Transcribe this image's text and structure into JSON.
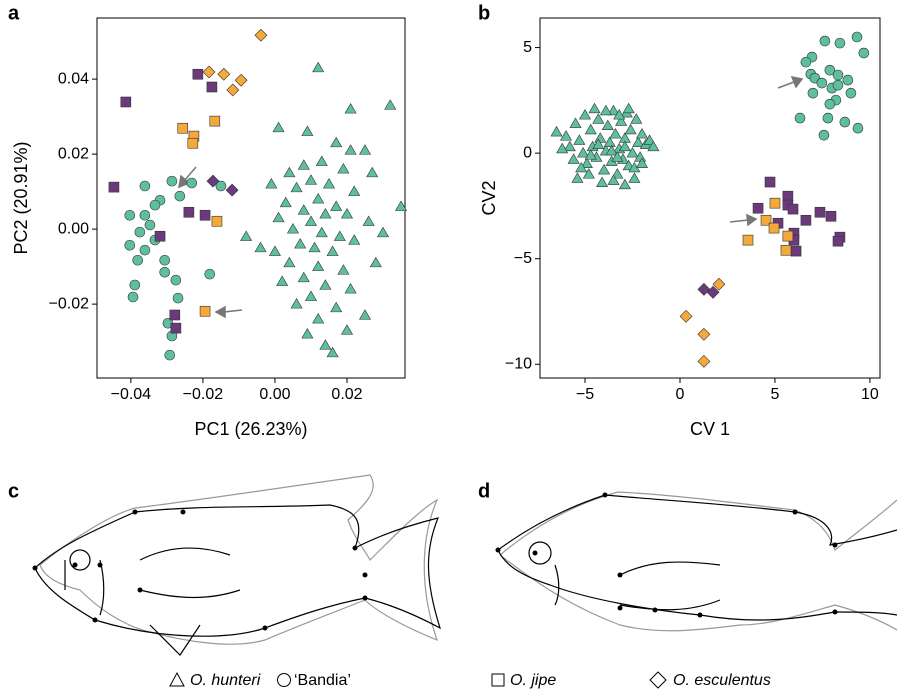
{
  "chart_data": [
    {
      "type": "scatter",
      "panel": "a",
      "xlabel": "PC1 (26.23%)",
      "ylabel": "PC2 (20.91%)",
      "xlim": [
        -0.0494,
        0.0361
      ],
      "ylim": [
        -0.0397,
        0.0563
      ],
      "xticks": [
        {
          "value": -0.04,
          "label": "−0.04"
        },
        {
          "value": -0.02,
          "label": "−0.02"
        },
        {
          "value": 0,
          "label": "0.00"
        },
        0.02
      ],
      "yticks": [
        {
          "value": -0.02,
          "label": "−0.02"
        },
        {
          "value": 0,
          "label": "0.00"
        },
        0.02,
        0.04
      ],
      "series": [
        {
          "name": "O. hunteri",
          "italic": true,
          "marker": "triangle",
          "color": "#5dbf9f",
          "x": [
            0.012,
            0.032,
            0.021,
            0.017,
            0.001,
            0.009,
            0.021,
            0.025,
            0.027,
            0.013,
            0.008,
            0.004,
            0.019,
            0.01,
            0.015,
            -0.001,
            0.006,
            0.022,
            0.035,
            0.012,
            0.003,
            0.017,
            0.008,
            0.014,
            0.02,
            0.001,
            0.01,
            0.026,
            -0.008,
            0.005,
            0.013,
            0.018,
            0.022,
            0.007,
            0.011,
            0.0,
            0.016,
            0.028,
            0.004,
            0.012,
            0.019,
            0.008,
            0.002,
            0.014,
            0.021,
            0.01,
            0.006,
            0.017,
            0.025,
            0.012,
            0.02,
            0.009,
            0.014,
            0.016,
            -0.004,
            0.03
          ],
          "y": [
            0.043,
            0.033,
            0.032,
            0.023,
            0.027,
            0.026,
            0.021,
            0.021,
            0.015,
            0.018,
            0.017,
            0.015,
            0.016,
            0.013,
            0.012,
            0.012,
            0.011,
            0.01,
            0.006,
            0.008,
            0.007,
            0.006,
            0.005,
            0.004,
            0.004,
            0.003,
            0.002,
            0.002,
            -0.002,
            0.0,
            -0.001,
            -0.002,
            -0.003,
            -0.004,
            -0.005,
            -0.006,
            -0.006,
            -0.009,
            -0.009,
            -0.01,
            -0.011,
            -0.013,
            -0.014,
            -0.015,
            -0.016,
            -0.018,
            -0.02,
            -0.021,
            -0.023,
            -0.024,
            -0.027,
            -0.028,
            -0.031,
            -0.033,
            -0.005,
            -0.001
          ]
        },
        {
          "name": "‘Bandia’",
          "italic": false,
          "marker": "circle",
          "color": "#5dbf9f",
          "x": [
            -0.0286,
            -0.0264,
            -0.0361,
            -0.0319,
            -0.0333,
            -0.0361,
            -0.0403,
            -0.0347,
            -0.0375,
            -0.0333,
            -0.0403,
            -0.0361,
            -0.0306,
            -0.0381,
            -0.0306,
            -0.0275,
            -0.0389,
            -0.0394,
            -0.0269,
            -0.0297,
            -0.0286,
            -0.0292,
            -0.0231,
            -0.0181,
            -0.015
          ],
          "y": [
            0.0128,
            0.0088,
            0.0115,
            0.0077,
            0.0064,
            0.0037,
            0.0037,
            0.0011,
            -0.0008,
            -0.0029,
            -0.0043,
            -0.0056,
            -0.0083,
            -0.0083,
            -0.0115,
            -0.0136,
            -0.0149,
            -0.0181,
            -0.0184,
            -0.0251,
            -0.0285,
            -0.0336,
            0.0123,
            -0.012,
            0.0115
          ]
        },
        {
          "name": "O. jipe",
          "italic": true,
          "marker": "square",
          "color": "#6b3a7d",
          "x": [
            -0.0414,
            -0.0214,
            -0.0175,
            -0.0447,
            -0.0239,
            -0.0194,
            -0.0319,
            -0.0278,
            -0.0275
          ],
          "y": [
            0.0339,
            0.0413,
            0.0379,
            0.0112,
            0.0045,
            0.0037,
            -0.0019,
            -0.0229,
            -0.0264
          ]
        },
        {
          "name": "O. esculentus",
          "italic": true,
          "marker": "diamond",
          "color": "#6b3a7d",
          "x": [
            -0.0172,
            -0.0119
          ],
          "y": [
            0.0128,
            0.0104
          ]
        },
        {
          "marker": "square",
          "color": "#f5a93a",
          "x": [
            -0.0256,
            -0.0225,
            -0.0228,
            -0.0167,
            -0.0161,
            -0.0194
          ],
          "y": [
            0.0269,
            0.0248,
            0.0229,
            0.0288,
            0.0021,
            -0.0219
          ]
        },
        {
          "marker": "diamond",
          "color": "#f5a93a",
          "x": [
            -0.0183,
            -0.0142,
            -0.0094,
            -0.0117,
            -0.0039
          ],
          "y": [
            0.0419,
            0.0413,
            0.0397,
            0.0371,
            0.0517
          ]
        }
      ]
    },
    {
      "type": "scatter",
      "panel": "b",
      "xlabel": "CV 1",
      "ylabel": "CV2",
      "xlim": [
        -7.37,
        10.53
      ],
      "ylim": [
        -10.65,
        6.4
      ],
      "xticks": [
        {
          "value": -5,
          "label": "−5"
        },
        0,
        5,
        10
      ],
      "yticks": [
        {
          "value": -10,
          "label": "−10"
        },
        {
          "value": -5,
          "label": "−5"
        },
        0,
        5
      ],
      "series": [
        {
          "marker": "triangle",
          "color": "#5dbf9f",
          "x": [
            -6.5,
            -6,
            -5.8,
            -5.5,
            -5.3,
            -5.1,
            -5,
            -4.9,
            -4.7,
            -4.6,
            -4.4,
            -4.3,
            -4.2,
            -4.0,
            -3.9,
            -3.8,
            -3.7,
            -3.6,
            -3.5,
            -3.4,
            -3.3,
            -3.2,
            -3.1,
            -3.0,
            -2.9,
            -2.8,
            -2.7,
            -2.6,
            -2.5,
            -2.4,
            -2.3,
            -2.2,
            -2.1,
            -2.0,
            -1.8,
            -1.6,
            -1.4,
            -5.4,
            -4.8,
            -4.1,
            -3.5,
            -2.9,
            -5.6,
            -4.5,
            -3.9,
            -3.2,
            -2.7,
            -4.3,
            -3.6,
            -2.9,
            -3.3,
            -4.7,
            -5.2,
            -2.4,
            -6.2,
            -2.0
          ],
          "y": [
            1.0,
            0.8,
            0.3,
            1.4,
            0.6,
            0.0,
            1.8,
            -0.5,
            1.1,
            0.3,
            -0.2,
            1.6,
            0.7,
            -0.8,
            0.1,
            1.3,
            0.5,
            -0.4,
            2.0,
            0.9,
            -1.0,
            0.2,
            1.5,
            -0.3,
            0.7,
            1.9,
            -0.6,
            1.1,
            0.0,
            -1.2,
            1.6,
            0.5,
            -0.2,
            0.9,
            0.4,
            0.6,
            0.3,
            -1.2,
            -1.0,
            -1.4,
            -1.3,
            -1.5,
            -0.3,
            2.1,
            2.0,
            1.8,
            2.1,
            0.4,
            0.1,
            0.3,
            -0.2,
            -0.1,
            -0.7,
            -0.7,
            0.2,
            -0.5
          ]
        },
        {
          "marker": "circle",
          "color": "#5dbf9f",
          "x": [
            6.95,
            7.63,
            8.42,
            9.32,
            9.68,
            6.63,
            6.89,
            7.1,
            7.89,
            8.32,
            8.84,
            7.47,
            8.0,
            7.0,
            9.0,
            8.21,
            7.89,
            6.32,
            8.68,
            7.79,
            7.58,
            9.37,
            8.32
          ],
          "y": [
            4.55,
            5.31,
            5.21,
            5.5,
            4.74,
            4.31,
            3.74,
            3.55,
            3.93,
            3.7,
            3.46,
            3.32,
            3.08,
            2.84,
            2.84,
            2.51,
            2.32,
            1.66,
            1.47,
            1.66,
            0.85,
            1.18,
            3.22
          ]
        },
        {
          "marker": "square",
          "color": "#6b3a7d",
          "x": [
            4.74,
            5.68,
            5.68,
            4.11,
            5.95,
            6.63,
            7.37,
            7.95,
            8.42,
            8.32,
            6.0,
            6.0,
            6.11,
            5.16
          ],
          "y": [
            -1.37,
            -2.04,
            -2.46,
            -2.61,
            -2.65,
            -3.18,
            -2.8,
            -2.99,
            -3.98,
            -4.17,
            -3.79,
            -4.12,
            -4.64,
            -3.32
          ]
        },
        {
          "marker": "diamond",
          "color": "#6b3a7d",
          "x": [
            1.26,
            1.74
          ],
          "y": [
            -6.45,
            -6.59
          ]
        },
        {
          "marker": "square",
          "color": "#f5a93a",
          "x": [
            4.53,
            4.95,
            3.58,
            5.68,
            5.58,
            5.0
          ],
          "y": [
            -3.18,
            -3.55,
            -4.12,
            -3.93,
            -4.6,
            -2.37
          ]
        },
        {
          "marker": "diamond",
          "color": "#f5a93a",
          "x": [
            2.05,
            0.32,
            1.26,
            1.26
          ],
          "y": [
            -6.21,
            -7.73,
            -8.58,
            -9.86
          ]
        }
      ]
    }
  ],
  "diagrams": [
    {
      "panel": "c"
    },
    {
      "panel": "d"
    }
  ]
}
